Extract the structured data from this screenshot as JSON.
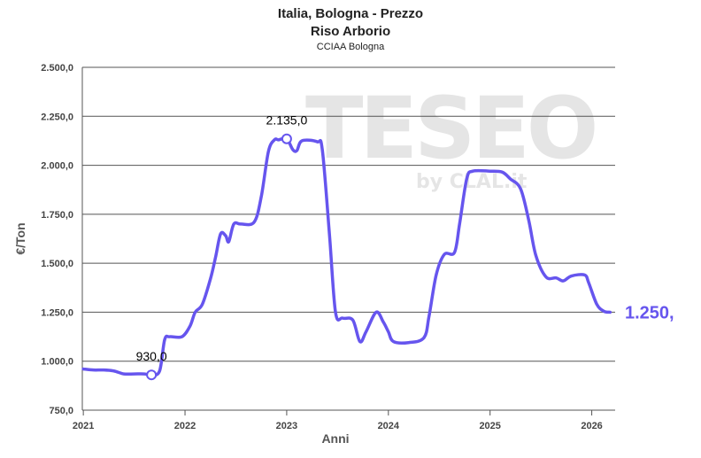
{
  "header": {
    "title_line1": "Italia, Bologna - Prezzo",
    "title_line2": "Riso Arborio",
    "subtitle": "CCIAA Bologna"
  },
  "watermark": {
    "text": "TESEO",
    "sub": "by CLAL.it"
  },
  "colors": {
    "series": "#6655ee",
    "grid": "#555555",
    "text": "#444444"
  },
  "chart_data": {
    "type": "line",
    "title": "Italia, Bologna - Prezzo",
    "subtitle": "Riso Arborio",
    "source": "CCIAA Bologna",
    "xlabel": "Anni",
    "ylabel": "€/Ton",
    "ylim": [
      750,
      2500
    ],
    "xlim": [
      2020.99,
      2026.23
    ],
    "grid": true,
    "x_ticks": [
      "2021",
      "2022",
      "2023",
      "2024",
      "2025",
      "2026"
    ],
    "y_ticks": [
      "750,0",
      "1.000,0",
      "1.250,0",
      "1.500,0",
      "1.750,0",
      "2.000,0",
      "2.250,0",
      "2.500,0"
    ],
    "y_tick_values": [
      750,
      1000,
      1250,
      1500,
      1750,
      2000,
      2250,
      2500
    ],
    "series": [
      {
        "points": [
          [
            2021.0,
            960
          ],
          [
            2021.1,
            955
          ],
          [
            2021.2,
            955
          ],
          [
            2021.3,
            950
          ],
          [
            2021.4,
            935
          ],
          [
            2021.5,
            935
          ],
          [
            2021.6,
            935
          ],
          [
            2021.67,
            930
          ],
          [
            2021.75,
            950
          ],
          [
            2021.8,
            1110
          ],
          [
            2021.85,
            1125
          ],
          [
            2021.97,
            1125
          ],
          [
            2022.05,
            1180
          ],
          [
            2022.1,
            1250
          ],
          [
            2022.17,
            1290
          ],
          [
            2022.25,
            1420
          ],
          [
            2022.3,
            1530
          ],
          [
            2022.35,
            1650
          ],
          [
            2022.4,
            1640
          ],
          [
            2022.43,
            1610
          ],
          [
            2022.48,
            1700
          ],
          [
            2022.55,
            1700
          ],
          [
            2022.68,
            1710
          ],
          [
            2022.75,
            1840
          ],
          [
            2022.82,
            2070
          ],
          [
            2022.88,
            2130
          ],
          [
            2022.92,
            2130
          ],
          [
            2023.0,
            2135
          ],
          [
            2023.06,
            2080
          ],
          [
            2023.1,
            2075
          ],
          [
            2023.15,
            2125
          ],
          [
            2023.3,
            2120
          ],
          [
            2023.35,
            2080
          ],
          [
            2023.42,
            1650
          ],
          [
            2023.48,
            1250
          ],
          [
            2023.55,
            1220
          ],
          [
            2023.65,
            1210
          ],
          [
            2023.72,
            1100
          ],
          [
            2023.78,
            1150
          ],
          [
            2023.88,
            1250
          ],
          [
            2023.95,
            1200
          ],
          [
            2024.0,
            1150
          ],
          [
            2024.05,
            1100
          ],
          [
            2024.2,
            1095
          ],
          [
            2024.35,
            1120
          ],
          [
            2024.4,
            1230
          ],
          [
            2024.47,
            1440
          ],
          [
            2024.55,
            1545
          ],
          [
            2024.65,
            1555
          ],
          [
            2024.7,
            1700
          ],
          [
            2024.77,
            1930
          ],
          [
            2024.83,
            1970
          ],
          [
            2025.0,
            1970
          ],
          [
            2025.12,
            1965
          ],
          [
            2025.2,
            1930
          ],
          [
            2025.3,
            1880
          ],
          [
            2025.38,
            1720
          ],
          [
            2025.45,
            1540
          ],
          [
            2025.55,
            1430
          ],
          [
            2025.65,
            1425
          ],
          [
            2025.72,
            1410
          ],
          [
            2025.8,
            1435
          ],
          [
            2025.93,
            1440
          ],
          [
            2025.97,
            1400
          ],
          [
            2026.05,
            1290
          ],
          [
            2026.12,
            1255
          ],
          [
            2026.18,
            1250
          ]
        ]
      }
    ],
    "annotations": [
      {
        "label": "930,0",
        "x": 2021.67,
        "y": 930
      },
      {
        "label": "2.135,0",
        "x": 2023.0,
        "y": 2135
      }
    ],
    "last_value_label": "1.250,"
  }
}
